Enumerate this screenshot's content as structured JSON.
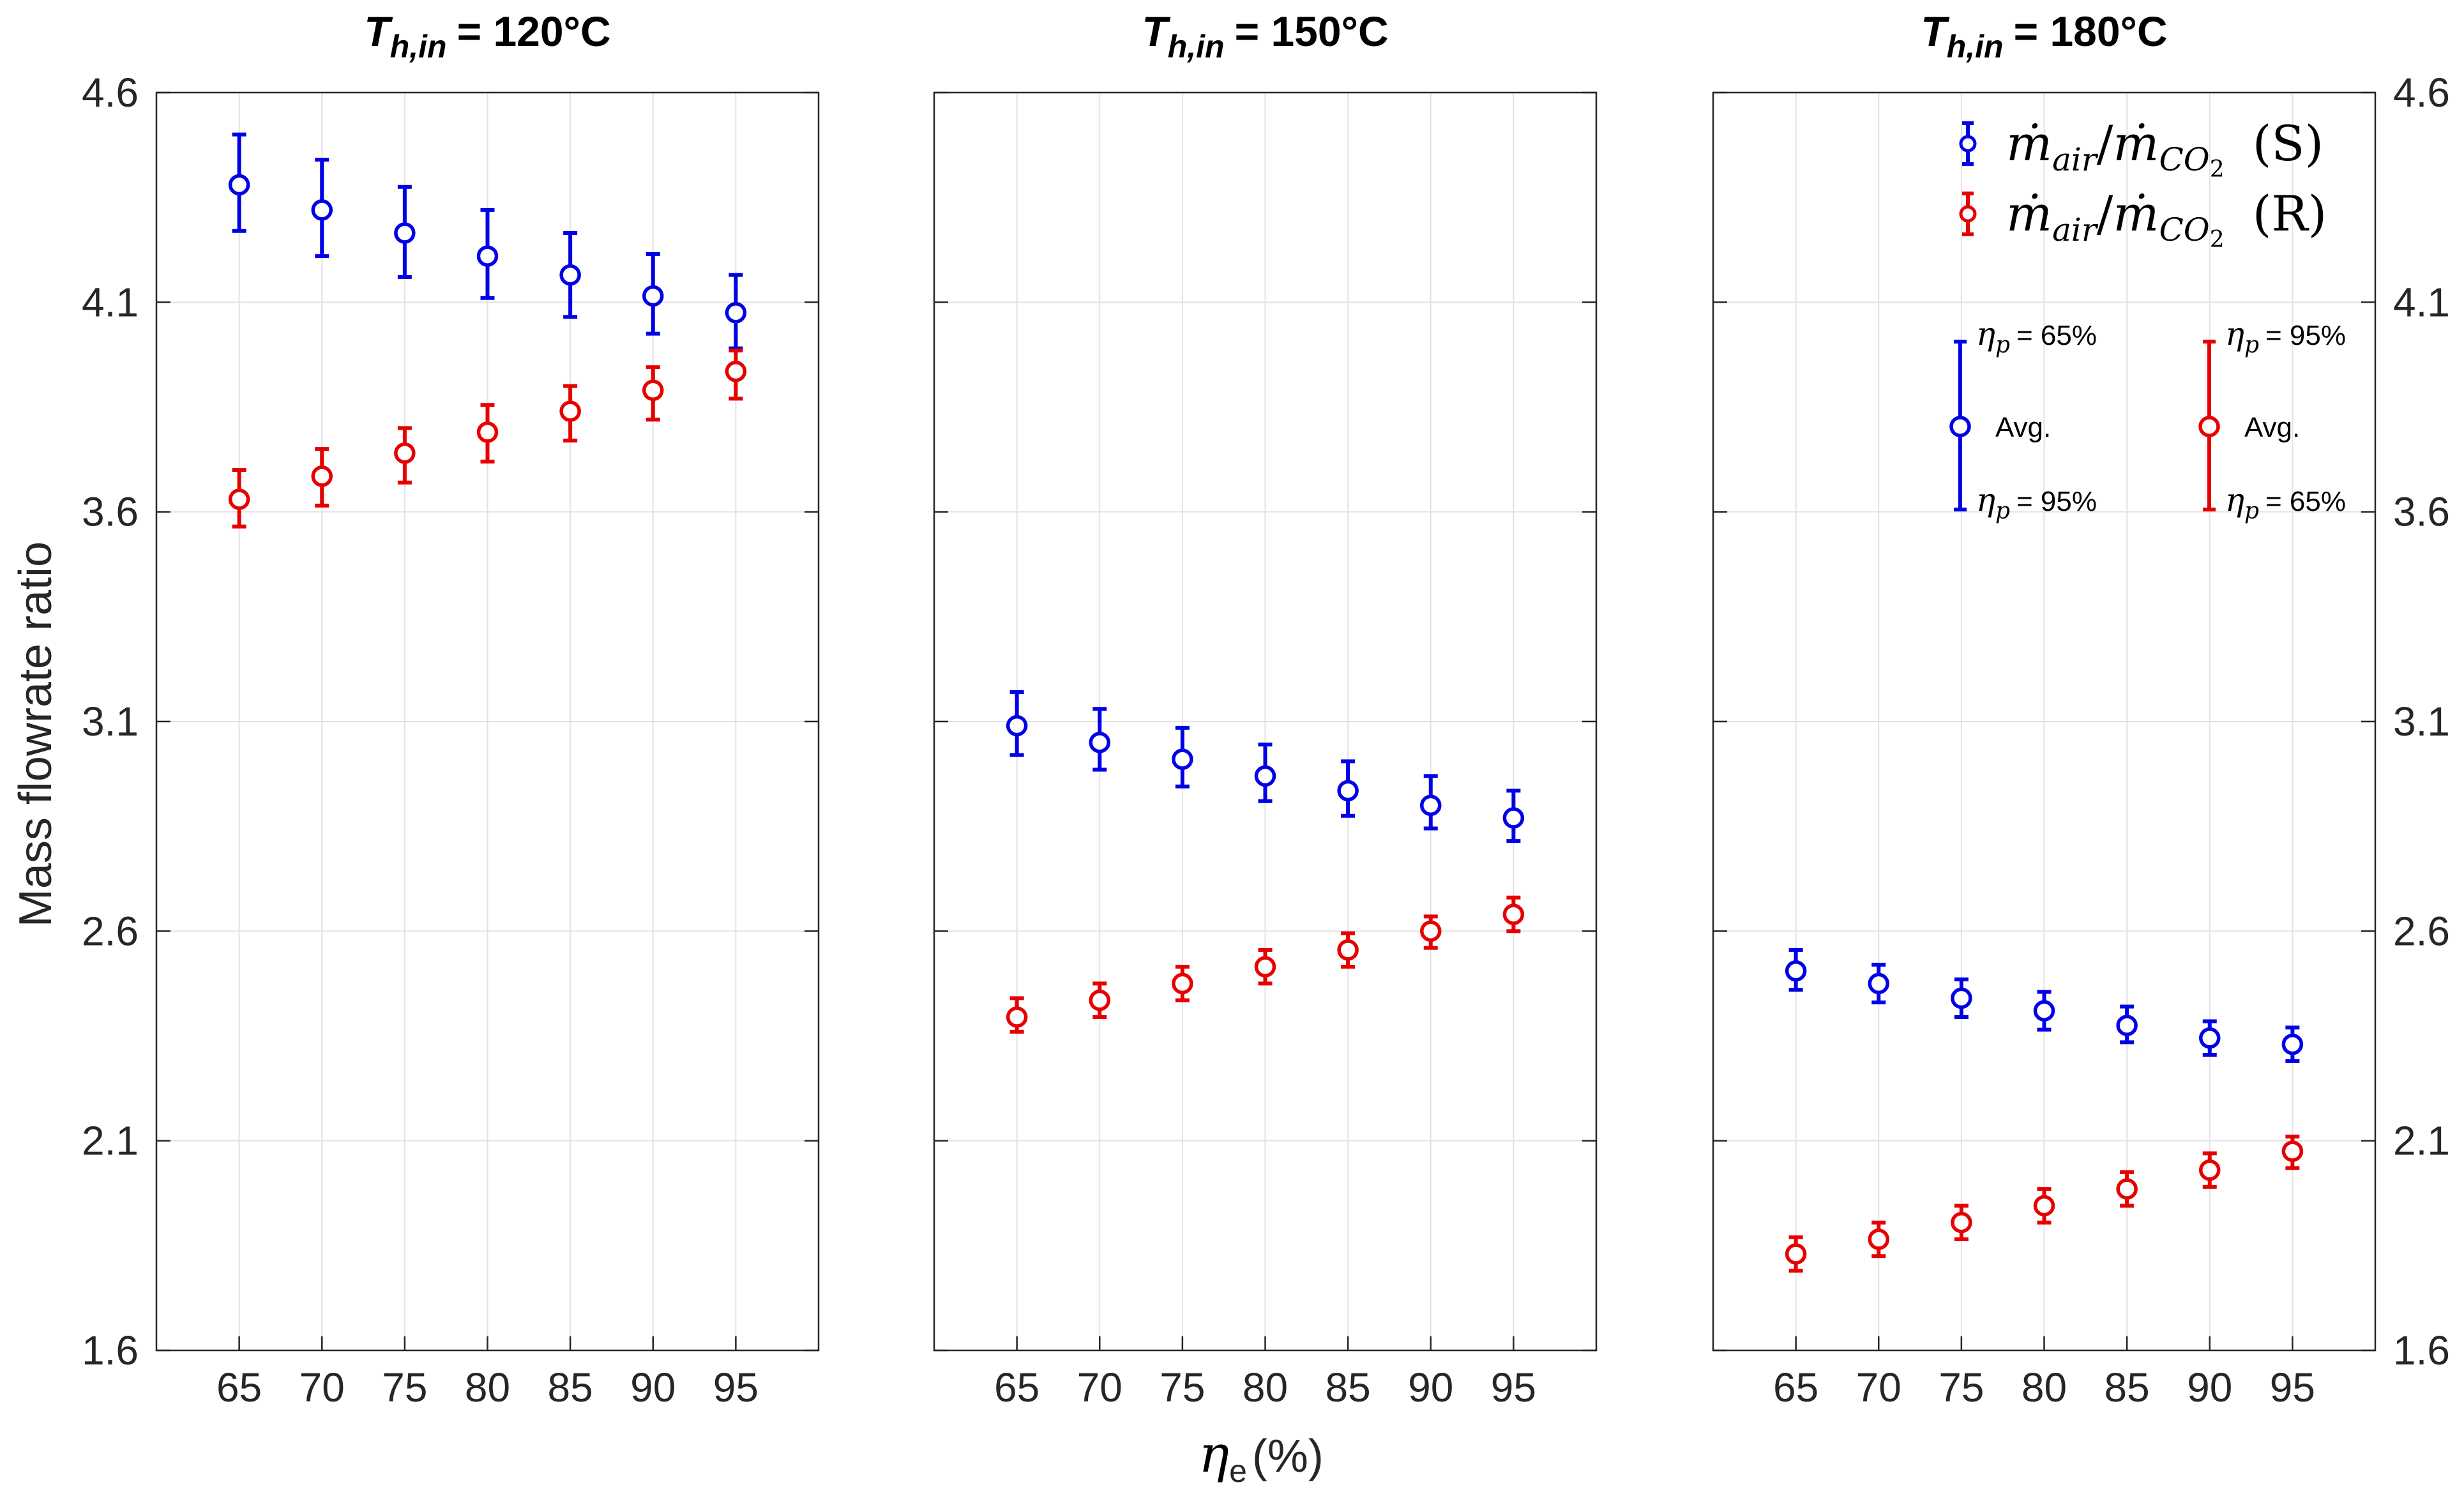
{
  "chart_data": {
    "type": "scatter-errorbar",
    "ylabel": "Mass flowrate ratio",
    "xlabel": "ηe (%)",
    "ylim": [
      1.6,
      4.6
    ],
    "yticks": [
      "1.6",
      "2.1",
      "2.6",
      "3.1",
      "3.6",
      "4.1",
      "4.6"
    ],
    "xticks": [
      "65",
      "70",
      "75",
      "80",
      "85",
      "90",
      "95"
    ],
    "xlim": [
      60,
      100
    ],
    "grid": true,
    "colors": {
      "S": "#0000e6",
      "R": "#e60000"
    },
    "legend": {
      "entries": [
        {
          "series": "S",
          "label": "ṁair/ṁCO2 (S)",
          "main": "ṁ",
          "sub": "air",
          "slash": "/",
          "main2": "ṁ",
          "sub2": "CO",
          "sub2b": "2",
          "tag": "(S)"
        },
        {
          "series": "R",
          "label": "ṁair/ṁCO2 (R)",
          "main": "ṁ",
          "sub": "air",
          "slash": "/",
          "main2": "ṁ",
          "sub2": "CO",
          "sub2b": "2",
          "tag": "(R)"
        }
      ],
      "placement": "top-right of third panel"
    },
    "annotation": {
      "avg_label": "Avg.",
      "eta_symbol": "η",
      "eta_sub": "p",
      "blue_top": "= 65%",
      "blue_bottom": "= 95%",
      "red_top": "= 95%",
      "red_bottom": "= 65%"
    },
    "panels": [
      {
        "title_T": "T",
        "title_sub": "h,in",
        "title_value": "= 120°C",
        "x": [
          65,
          70,
          75,
          80,
          85,
          90,
          95
        ],
        "series": [
          {
            "name": "S",
            "y": [
              4.38,
              4.32,
              4.265,
              4.21,
              4.165,
              4.115,
              4.075
            ],
            "lower": [
              4.27,
              4.21,
              4.16,
              4.11,
              4.065,
              4.025,
              3.99
            ],
            "upper": [
              4.5,
              4.44,
              4.375,
              4.32,
              4.265,
              4.215,
              4.165
            ]
          },
          {
            "name": "R",
            "y": [
              3.63,
              3.685,
              3.74,
              3.79,
              3.84,
              3.89,
              3.935
            ],
            "lower": [
              3.565,
              3.615,
              3.67,
              3.72,
              3.77,
              3.82,
              3.87
            ],
            "upper": [
              3.7,
              3.75,
              3.8,
              3.855,
              3.9,
              3.945,
              3.985
            ]
          }
        ]
      },
      {
        "title_T": "T",
        "title_sub": "h,in",
        "title_value": "= 150°C",
        "x": [
          65,
          70,
          75,
          80,
          85,
          90,
          95
        ],
        "series": [
          {
            "name": "S",
            "y": [
              3.09,
              3.05,
              3.01,
              2.97,
              2.935,
              2.9,
              2.87
            ],
            "lower": [
              3.02,
              2.985,
              2.945,
              2.91,
              2.875,
              2.845,
              2.815
            ],
            "upper": [
              3.17,
              3.13,
              3.085,
              3.045,
              3.005,
              2.97,
              2.935
            ]
          },
          {
            "name": "R",
            "y": [
              2.395,
              2.435,
              2.475,
              2.515,
              2.555,
              2.6,
              2.64
            ],
            "lower": [
              2.36,
              2.395,
              2.435,
              2.475,
              2.515,
              2.56,
              2.6
            ],
            "upper": [
              2.44,
              2.475,
              2.515,
              2.555,
              2.595,
              2.635,
              2.68
            ]
          }
        ]
      },
      {
        "title_T": "T",
        "title_sub": "h,in",
        "title_value": "= 180°C",
        "x": [
          65,
          70,
          75,
          80,
          85,
          90,
          95
        ],
        "series": [
          {
            "name": "S",
            "y": [
              2.505,
              2.475,
              2.44,
              2.41,
              2.375,
              2.345,
              2.33
            ],
            "lower": [
              2.46,
              2.43,
              2.395,
              2.365,
              2.335,
              2.305,
              2.29
            ],
            "upper": [
              2.555,
              2.52,
              2.485,
              2.455,
              2.42,
              2.385,
              2.37
            ]
          },
          {
            "name": "R",
            "y": [
              1.83,
              1.865,
              1.905,
              1.945,
              1.985,
              2.03,
              2.075
            ],
            "lower": [
              1.79,
              1.825,
              1.865,
              1.905,
              1.945,
              1.99,
              2.035
            ],
            "upper": [
              1.87,
              1.905,
              1.945,
              1.985,
              2.025,
              2.07,
              2.11
            ]
          }
        ]
      }
    ]
  }
}
